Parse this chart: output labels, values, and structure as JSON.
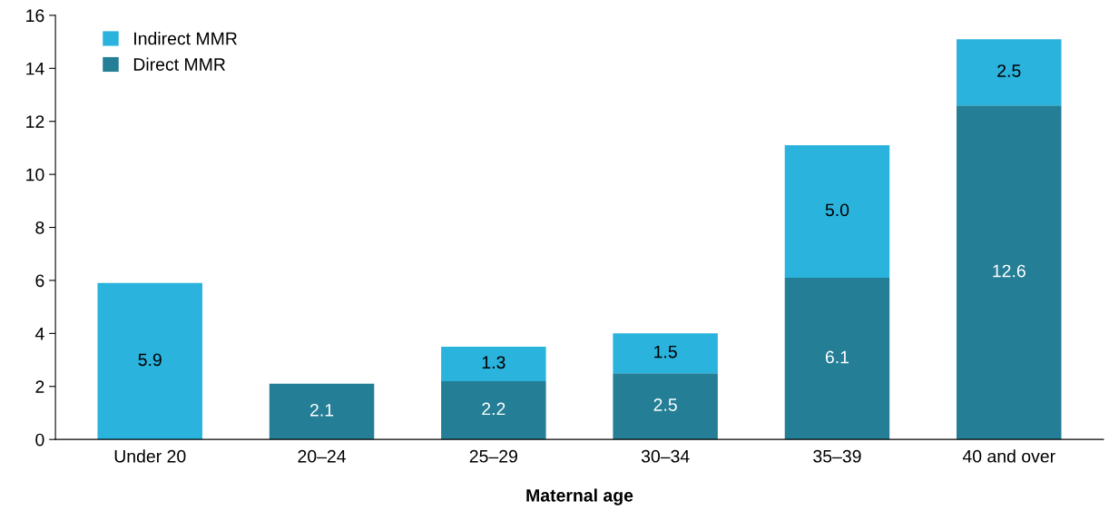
{
  "chart_data": {
    "type": "bar",
    "stacked": true,
    "xlabel": "Maternal age",
    "categories": [
      "Under 20",
      "20–24",
      "25–29",
      "30–34",
      "35–39",
      "40 and over"
    ],
    "series": [
      {
        "name": "Direct MMR",
        "color": "#247e96",
        "values": [
          null,
          2.1,
          2.2,
          2.5,
          6.1,
          12.6
        ],
        "value_labels": [
          null,
          "2.1",
          "2.2",
          "2.5",
          "6.1",
          "12.6"
        ]
      },
      {
        "name": "Indirect MMR",
        "color": "#29b3dd",
        "values": [
          5.9,
          null,
          1.3,
          1.5,
          5.0,
          2.5
        ],
        "value_labels": [
          "5.9",
          null,
          "1.3",
          "1.5",
          "5.0",
          "2.5"
        ]
      }
    ],
    "ylim": [
      0,
      16
    ],
    "yticks": [
      0,
      2,
      4,
      6,
      8,
      10,
      12,
      14,
      16
    ],
    "grid": false,
    "legend": "top left"
  }
}
